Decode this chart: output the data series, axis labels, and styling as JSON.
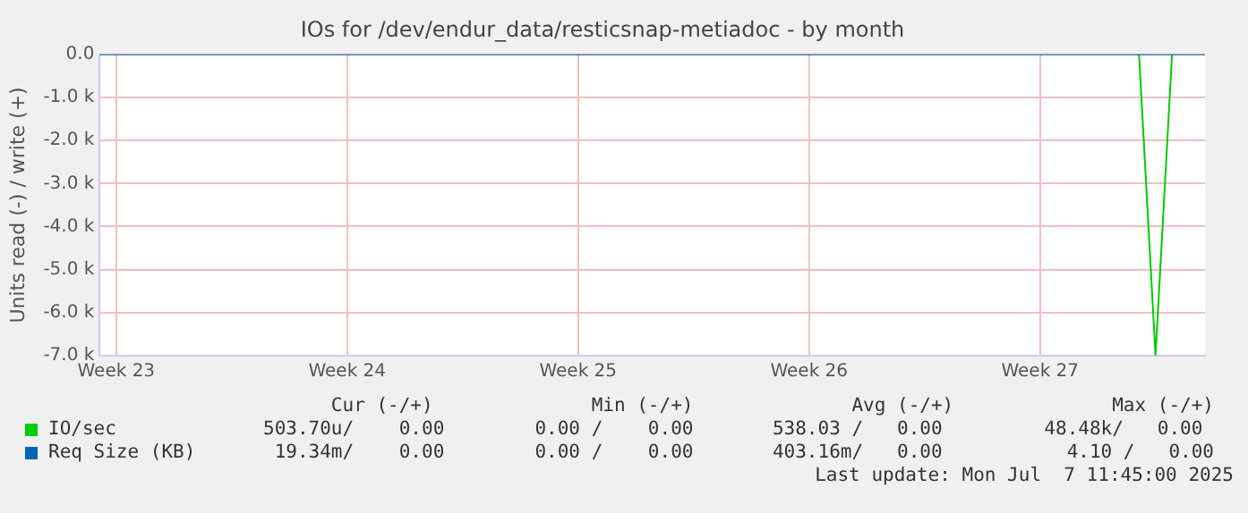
{
  "chart_data": {
    "type": "line",
    "title": "IOs for /dev/endur_data/resticsnap-metiadoc - by month",
    "ylabel": "Units read (-) / write (+)",
    "categories": [
      null,
      "Week 23",
      null,
      null,
      null,
      null,
      null,
      null,
      null,
      null,
      null,
      null,
      null,
      null,
      null,
      "Week 24",
      null,
      null,
      null,
      null,
      null,
      null,
      null,
      null,
      null,
      null,
      null,
      null,
      null,
      "Week 25",
      null,
      null,
      null,
      null,
      null,
      null,
      null,
      null,
      null,
      null,
      null,
      null,
      null,
      "Week 26",
      null,
      null,
      null,
      null,
      null,
      null,
      null,
      null,
      null,
      null,
      null,
      null,
      null,
      "Week 27",
      null,
      null,
      null,
      null,
      null,
      null,
      null,
      null,
      null,
      null
    ],
    "ylim": [
      -7000,
      0
    ],
    "yticks": [
      {
        "value": -7000,
        "label": "-7.0 k"
      },
      {
        "value": -6000,
        "label": "-6.0 k"
      },
      {
        "value": -5000,
        "label": "-5.0 k"
      },
      {
        "value": -4000,
        "label": "-4.0 k"
      },
      {
        "value": -3000,
        "label": "-3.0 k"
      },
      {
        "value": -2000,
        "label": "-2.0 k"
      },
      {
        "value": -1000,
        "label": "-1.0 k"
      },
      {
        "value": 0,
        "label": "0.0"
      }
    ],
    "series": [
      {
        "name": "Req Size (KB)",
        "color": "#0066b3",
        "values": [
          0,
          0,
          0,
          0,
          0,
          0,
          0,
          0,
          0,
          0,
          0,
          0,
          0,
          0,
          0,
          0,
          0,
          0,
          0,
          0,
          0,
          0,
          0,
          0,
          0,
          0,
          0,
          0,
          0,
          0,
          0,
          0,
          0,
          0,
          0,
          0,
          0,
          0,
          0,
          0,
          0,
          0,
          0,
          0,
          0,
          0,
          0,
          0,
          0,
          0,
          0,
          0,
          0,
          0,
          0,
          0,
          0,
          0,
          0,
          0,
          0,
          0,
          0,
          0,
          0,
          0,
          0,
          0
        ]
      },
      {
        "name": "IO/sec",
        "color": "#00cc00",
        "values": [
          null,
          null,
          null,
          null,
          null,
          null,
          null,
          null,
          null,
          null,
          null,
          null,
          null,
          null,
          null,
          null,
          null,
          null,
          null,
          null,
          null,
          null,
          null,
          null,
          null,
          null,
          null,
          null,
          null,
          null,
          null,
          null,
          null,
          null,
          null,
          null,
          null,
          null,
          null,
          null,
          null,
          null,
          null,
          null,
          null,
          null,
          null,
          null,
          null,
          null,
          null,
          null,
          null,
          null,
          null,
          null,
          null,
          null,
          null,
          null,
          null,
          null,
          null,
          0,
          -7000,
          0,
          null,
          null
        ]
      }
    ],
    "grid": true,
    "legend": "bottom",
    "marker": "none",
    "annotations": [
      "      Cur (-/+)              Min (-/+)              Avg (-/+)              Max (-/+)",
      "503.70u/    0.00        0.00 /    0.00       538.03 /   0.00         48.48k/   0.00",
      " 19.34m/    0.00        0.00 /    0.00       403.16m/   0.00           4.10 /   0.00",
      "Last update: Mon Jul  7 11:45:00 2025"
    ]
  }
}
